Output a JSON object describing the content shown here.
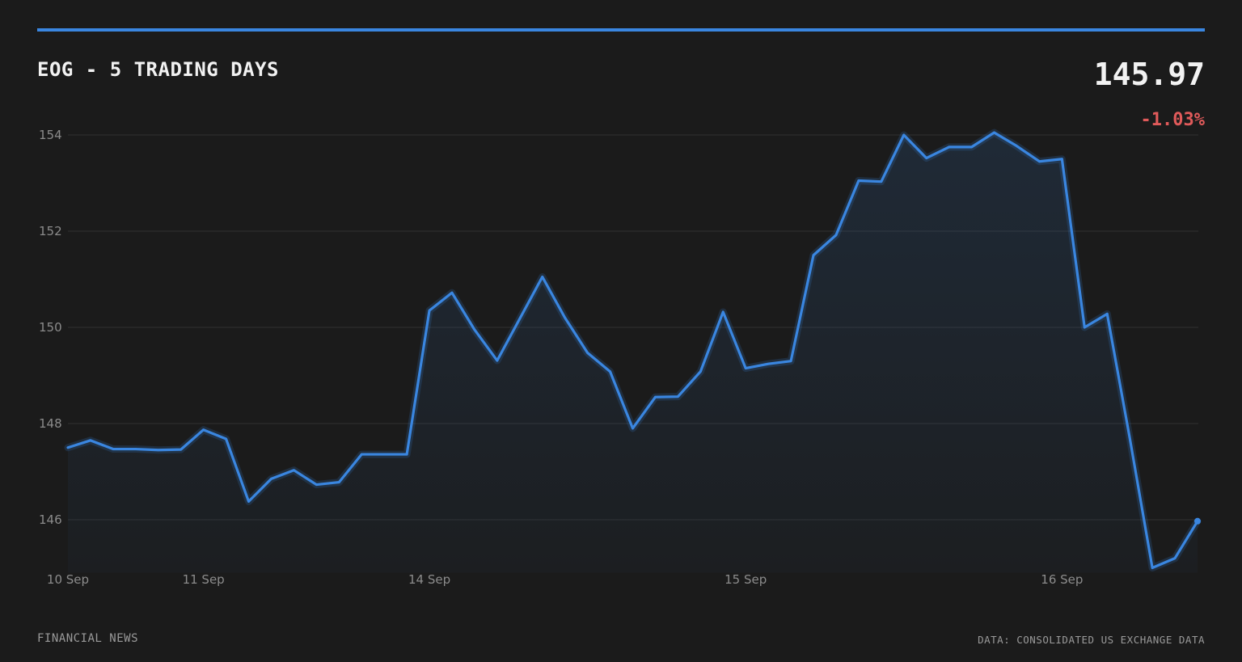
{
  "header": {
    "title": "EOG - 5 TRADING DAYS",
    "price": "145.97",
    "change": "-1.03%"
  },
  "footer": {
    "source_left": "FINANCIAL NEWS",
    "source_right": "DATA: CONSOLIDATED US EXCHANGE DATA"
  },
  "colors": {
    "background": "#1b1b1b",
    "accent": "#3a86e0",
    "negative": "#e05a5a",
    "grid": "#2c2c2c",
    "text": "#f2f2f2",
    "muted": "#8c8c8c"
  },
  "chart_data": {
    "type": "area",
    "title": "EOG - 5 TRADING DAYS",
    "xlabel": "",
    "ylabel": "",
    "ylim": [
      144.9,
      154.2
    ],
    "yticks": [
      146,
      148,
      150,
      152,
      154
    ],
    "grid": true,
    "xtick_labels": [
      {
        "label": "10 Sep",
        "index": 0
      },
      {
        "label": "11 Sep",
        "index": 6
      },
      {
        "label": "14 Sep",
        "index": 16
      },
      {
        "label": "15 Sep",
        "index": 30
      },
      {
        "label": "16 Sep",
        "index": 44
      }
    ],
    "series": [
      {
        "values": [
          147.5,
          147.65,
          147.47,
          147.47,
          147.45,
          147.46,
          147.87,
          147.68,
          146.38,
          146.85,
          147.03,
          146.73,
          146.78,
          147.36,
          147.36,
          147.36,
          150.35,
          150.72,
          149.95,
          149.31,
          150.18,
          151.05,
          150.2,
          149.47,
          149.08,
          147.9,
          148.55,
          148.56,
          149.08,
          150.32,
          149.15,
          149.24,
          149.3,
          151.5,
          151.92,
          153.05,
          153.03,
          154.0,
          153.52,
          153.75,
          153.75,
          154.05,
          153.77,
          153.45,
          153.5,
          150.0,
          150.28,
          147.7,
          145.0,
          145.2,
          145.97
        ]
      }
    ]
  }
}
